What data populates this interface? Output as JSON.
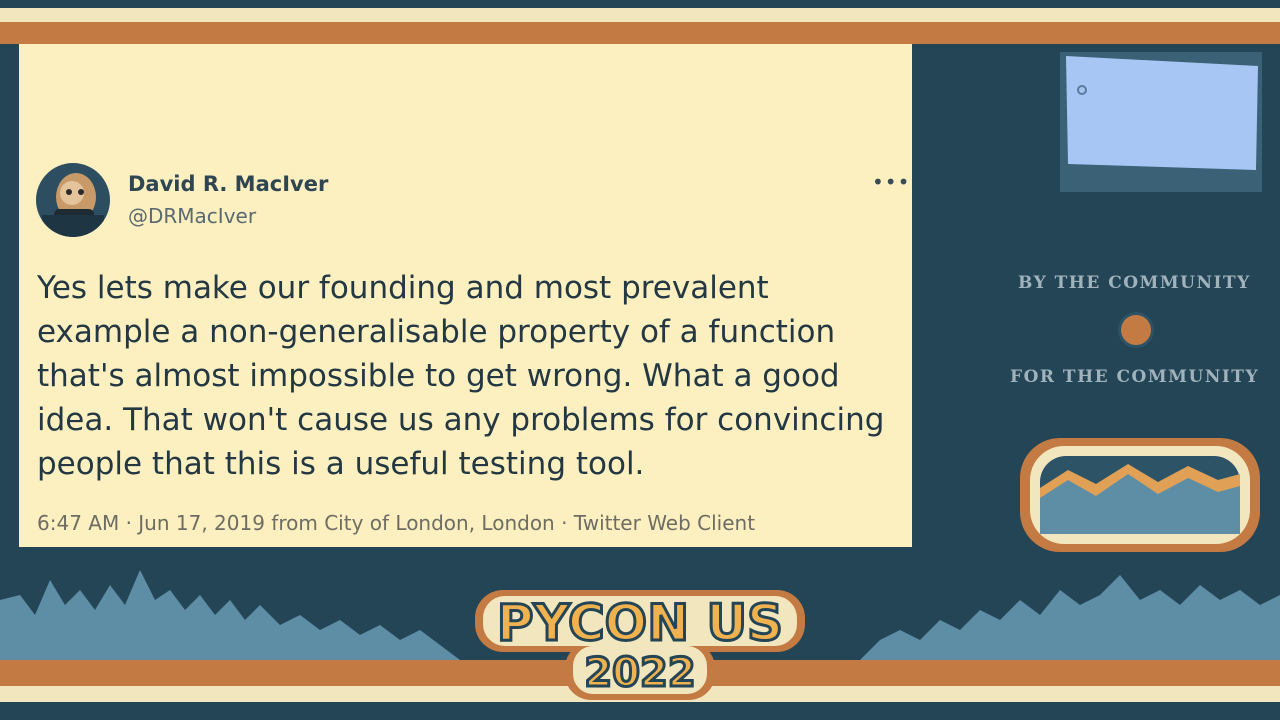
{
  "tweet": {
    "author_name": "David R. MacIver",
    "author_handle": "@DRMacIver",
    "more_label": "•••",
    "text": "Yes lets make our founding and most prevalent example a non-generalisable property of a function that's almost impossible to get wrong. What a good idea. That won't cause us any problems for convincing people that this is a useful testing tool.",
    "meta": "6:47 AM · Jun 17, 2019 from City of London, London · Twitter Web Client"
  },
  "sidebar": {
    "line_1": "BY THE COMMUNITY",
    "line_2": "FOR THE COMMUNITY"
  },
  "logo": {
    "title": "PYCON US",
    "year": "2022"
  },
  "colors": {
    "background": "#244556",
    "card": "#fcefc0",
    "accent_orange": "#c47a43",
    "cream": "#f2e6bf",
    "preview_blue": "#a7c6f4"
  },
  "icons": [
    "more-icon",
    "avatar",
    "mountain-badge",
    "pycon-logo"
  ]
}
